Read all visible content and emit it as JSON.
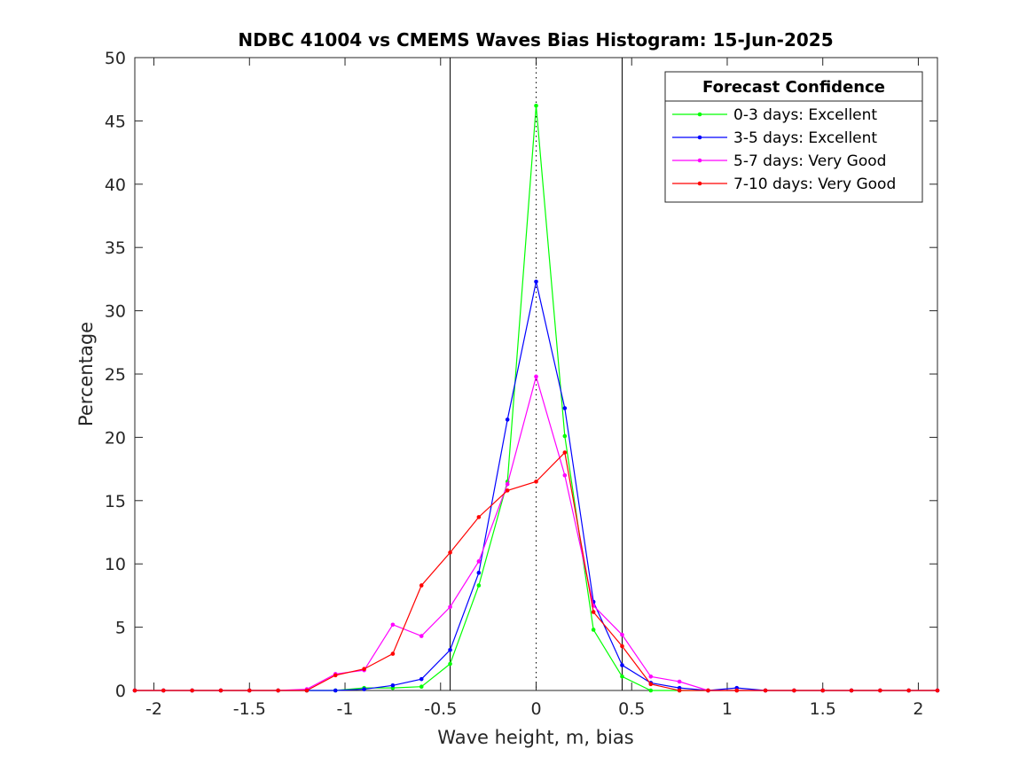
{
  "chart_data": {
    "type": "line",
    "title": "NDBC 41004 vs CMEMS Waves Bias Histogram: 15-Jun-2025",
    "xlabel": "Wave height, m, bias",
    "ylabel": "Percentage",
    "xlim": [
      -2.1,
      2.1
    ],
    "ylim": [
      0,
      50
    ],
    "xticks": [
      -2,
      -1.5,
      -1,
      -0.5,
      0,
      0.5,
      1,
      1.5,
      2
    ],
    "xtick_labels": [
      "-2",
      "-1.5",
      "-1",
      "-0.5",
      "0",
      "0.5",
      "1",
      "1.5",
      "2"
    ],
    "yticks": [
      0,
      5,
      10,
      15,
      20,
      25,
      30,
      35,
      40,
      45,
      50
    ],
    "ytick_labels": [
      "0",
      "5",
      "10",
      "15",
      "20",
      "25",
      "30",
      "35",
      "40",
      "45",
      "50"
    ],
    "grid": false,
    "vertical_lines": [
      {
        "x": -0.45,
        "style": "solid",
        "color": "#000000"
      },
      {
        "x": 0,
        "style": "dotted",
        "color": "#000000"
      },
      {
        "x": 0.45,
        "style": "solid",
        "color": "#000000"
      }
    ],
    "legend": {
      "title": "Forecast Confidence",
      "placement": "top-right"
    },
    "x": [
      -2.1,
      -1.95,
      -1.8,
      -1.65,
      -1.5,
      -1.35,
      -1.2,
      -1.05,
      -0.9,
      -0.75,
      -0.6,
      -0.45,
      -0.3,
      -0.15,
      0,
      0.15,
      0.3,
      0.45,
      0.6,
      0.75,
      0.9,
      1.05,
      1.2,
      1.35,
      1.5,
      1.65,
      1.8,
      1.95,
      2.1
    ],
    "series": [
      {
        "name": "0-3 days: Excellent",
        "color": "#00ff00",
        "values": [
          0,
          0,
          0,
          0,
          0,
          0,
          0,
          0,
          0.2,
          0.2,
          0.3,
          2.1,
          8.3,
          16.5,
          46.2,
          20.1,
          4.8,
          1.1,
          0,
          0,
          0,
          0,
          0,
          0,
          0,
          0,
          0,
          0,
          0
        ]
      },
      {
        "name": "3-5 days: Excellent",
        "color": "#0000ff",
        "values": [
          0,
          0,
          0,
          0,
          0,
          0,
          0,
          0,
          0.1,
          0.4,
          0.9,
          3.2,
          9.3,
          21.4,
          32.3,
          22.3,
          7.0,
          2.0,
          0.6,
          0.2,
          0,
          0.2,
          0,
          0,
          0,
          0,
          0,
          0,
          0
        ]
      },
      {
        "name": "5-7 days: Very Good",
        "color": "#ff00ff",
        "values": [
          0,
          0,
          0,
          0,
          0,
          0,
          0.1,
          1.3,
          1.6,
          5.2,
          4.3,
          6.6,
          10.2,
          16.3,
          24.8,
          17.0,
          6.7,
          4.4,
          1.1,
          0.7,
          0,
          0,
          0,
          0,
          0,
          0,
          0,
          0,
          0
        ]
      },
      {
        "name": "7-10 days: Very Good",
        "color": "#ff0000",
        "values": [
          0,
          0,
          0,
          0,
          0,
          0,
          0,
          1.2,
          1.7,
          2.9,
          8.3,
          10.9,
          13.7,
          15.8,
          16.5,
          18.8,
          6.2,
          3.5,
          0.5,
          0,
          0,
          0,
          0,
          0,
          0,
          0,
          0,
          0,
          0
        ]
      }
    ]
  }
}
